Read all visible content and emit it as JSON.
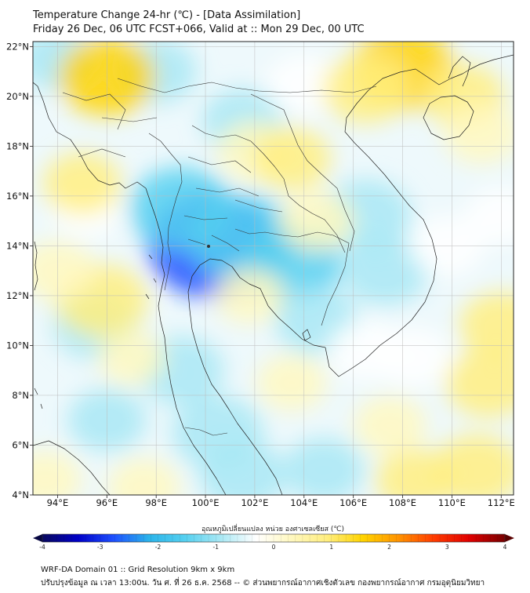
{
  "title": {
    "line1": "Temperature Change 24-hr (℃) - [Data Assimilation]",
    "line2": "Friday 26 Dec, 06 UTC FCST+066, Valid at :: Mon 29 Dec, 00 UTC"
  },
  "map": {
    "lat_labels": [
      "22°N",
      "20°N",
      "18°N",
      "16°N",
      "14°N",
      "12°N",
      "10°N",
      "8°N",
      "6°N",
      "4°N"
    ],
    "lon_labels": [
      "94°E",
      "96°E",
      "98°E",
      "100°E",
      "102°E",
      "104°E",
      "106°E",
      "108°E",
      "110°E",
      "112°E"
    ],
    "lat_values": [
      22,
      20,
      18,
      16,
      14,
      12,
      10,
      8,
      6,
      4
    ],
    "lon_values": [
      94,
      96,
      98,
      100,
      102,
      104,
      106,
      108,
      110,
      112
    ],
    "extent": {
      "lon_min": 93,
      "lon_max": 112.5,
      "lat_min": 4,
      "lat_max": 22.2
    },
    "grid": true,
    "anomalies": [
      {
        "lon": 100.3,
        "lat": 14.0,
        "value": -2.6
      },
      {
        "lon": 101.5,
        "lat": 14.3,
        "value": -1.8
      },
      {
        "lon": 99.0,
        "lat": 15.5,
        "value": -1.6
      },
      {
        "lon": 103.5,
        "lat": 13.3,
        "value": -1.5
      },
      {
        "lon": 106.5,
        "lat": 15.2,
        "value": -1.2
      },
      {
        "lon": 107.3,
        "lat": 13.0,
        "value": -1.0
      },
      {
        "lon": 104.5,
        "lat": 11.0,
        "value": -0.9
      },
      {
        "lon": 99.0,
        "lat": 9.0,
        "value": -1.0
      },
      {
        "lon": 100.5,
        "lat": 6.5,
        "value": -1.2
      },
      {
        "lon": 101.5,
        "lat": 4.8,
        "value": -1.0
      },
      {
        "lon": 95.5,
        "lat": 10.8,
        "value": -0.9
      },
      {
        "lon": 94.0,
        "lat": 21.5,
        "value": -0.7
      },
      {
        "lon": 98.0,
        "lat": 21.0,
        "value": -0.8
      },
      {
        "lon": 101.5,
        "lat": 19.0,
        "value": -0.8
      },
      {
        "lon": 104.0,
        "lat": 20.5,
        "value": -0.6
      },
      {
        "lon": 96.0,
        "lat": 7.0,
        "value": -0.7
      },
      {
        "lon": 104.8,
        "lat": 5.0,
        "value": -0.8
      },
      {
        "lon": 109.8,
        "lat": 14.0,
        "value": -0.6
      },
      {
        "lon": 112.0,
        "lat": 15.2,
        "value": -0.5
      },
      {
        "lon": 108.5,
        "lat": 9.5,
        "value": -0.6
      },
      {
        "lon": 106.5,
        "lat": 9.8,
        "value": -0.6
      },
      {
        "lon": 95.2,
        "lat": 15.5,
        "value": -0.5
      },
      {
        "lon": 96.0,
        "lat": 20.8,
        "value": 1.4
      },
      {
        "lon": 108.0,
        "lat": 21.1,
        "value": 1.6
      },
      {
        "lon": 106.5,
        "lat": 20.3,
        "value": 1.0
      },
      {
        "lon": 110.5,
        "lat": 20.0,
        "value": 0.8
      },
      {
        "lon": 111.2,
        "lat": 18.5,
        "value": 0.6
      },
      {
        "lon": 95.0,
        "lat": 16.5,
        "value": 0.7
      },
      {
        "lon": 95.8,
        "lat": 11.8,
        "value": 1.2
      },
      {
        "lon": 94.0,
        "lat": 13.0,
        "value": 0.6
      },
      {
        "lon": 102.0,
        "lat": 17.8,
        "value": 0.6
      },
      {
        "lon": 103.5,
        "lat": 17.5,
        "value": 0.7
      },
      {
        "lon": 104.5,
        "lat": 15.0,
        "value": 0.6
      },
      {
        "lon": 101.8,
        "lat": 12.0,
        "value": 0.4
      },
      {
        "lon": 112.0,
        "lat": 10.8,
        "value": 0.9
      },
      {
        "lon": 111.5,
        "lat": 8.5,
        "value": 1.0
      },
      {
        "lon": 111.0,
        "lat": 5.0,
        "value": 1.1
      },
      {
        "lon": 108.5,
        "lat": 4.6,
        "value": 0.7
      },
      {
        "lon": 103.5,
        "lat": 8.5,
        "value": 0.4
      },
      {
        "lon": 107.5,
        "lat": 6.8,
        "value": 0.5
      },
      {
        "lon": 97.5,
        "lat": 4.3,
        "value": 0.5
      },
      {
        "lon": 93.5,
        "lat": 4.6,
        "value": 0.5
      },
      {
        "lon": 97.0,
        "lat": 9.5,
        "value": 0.3
      }
    ]
  },
  "colorbar": {
    "label": "อุณหภูมิเปลี่ยนแปลง หน่วย องศาเซลเซียส (℃)",
    "range": [
      -4,
      4
    ],
    "tick_values": [
      -4,
      -3,
      -2,
      -1,
      0,
      1,
      2,
      3,
      4
    ],
    "tick_labels": [
      "-4",
      "-3",
      "-2",
      "-1",
      "0",
      "1",
      "2",
      "3",
      "4"
    ],
    "colors": [
      "#08085e",
      "#0000c8",
      "#1e50ff",
      "#2bb4ea",
      "#55d0f0",
      "#a8e8f4",
      "#ffffff",
      "#fff8c0",
      "#ffee80",
      "#ffd400",
      "#ff9400",
      "#ff3c00",
      "#e00000",
      "#780000"
    ]
  },
  "footer": {
    "line1": "WRF-DA Domain 01 :: Grid Resolution 9km x 9km",
    "line2": "ปรับปรุงข้อมูล ณ เวลา 13:00น. วัน ศ. ที่ 26 ธ.ค. 2568 -- © ส่วนพยากรณ์อากาศเชิงตัวเลข กองพยากรณ์อากาศ กรมอุตุนิยมวิทยา"
  }
}
